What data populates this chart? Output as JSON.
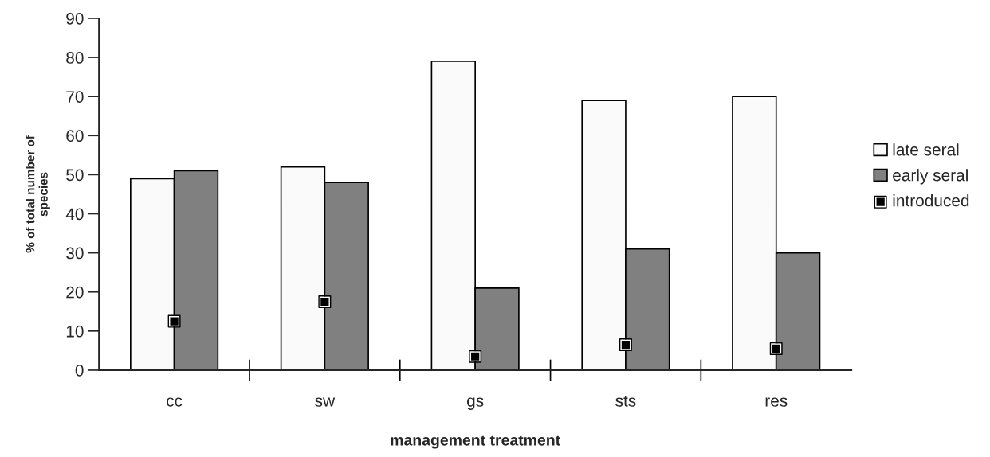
{
  "chart_data": {
    "type": "bar",
    "xlabel": "management treatment",
    "ylabel": "% of total number of\nspecies",
    "categories": [
      "cc",
      "sw",
      "gs",
      "sts",
      "res"
    ],
    "series": [
      {
        "name": "late seral",
        "color": "#fafafa",
        "values": [
          49,
          52,
          79,
          69,
          70
        ]
      },
      {
        "name": "early seral",
        "color": "#808080",
        "values": [
          51,
          48,
          21,
          31,
          30
        ]
      },
      {
        "name": "introduced",
        "type": "scatter",
        "color": "#000000",
        "marker": "square",
        "x": [
          "cc",
          "sw",
          "gs",
          "sts",
          "res"
        ],
        "values": [
          12.5,
          17.5,
          3.5,
          6.5,
          5.5
        ]
      }
    ],
    "ylim": [
      0,
      90
    ],
    "yticks": [
      0,
      10,
      20,
      30,
      40,
      50,
      60,
      70,
      80,
      90
    ],
    "grid": false,
    "legend": "right"
  }
}
